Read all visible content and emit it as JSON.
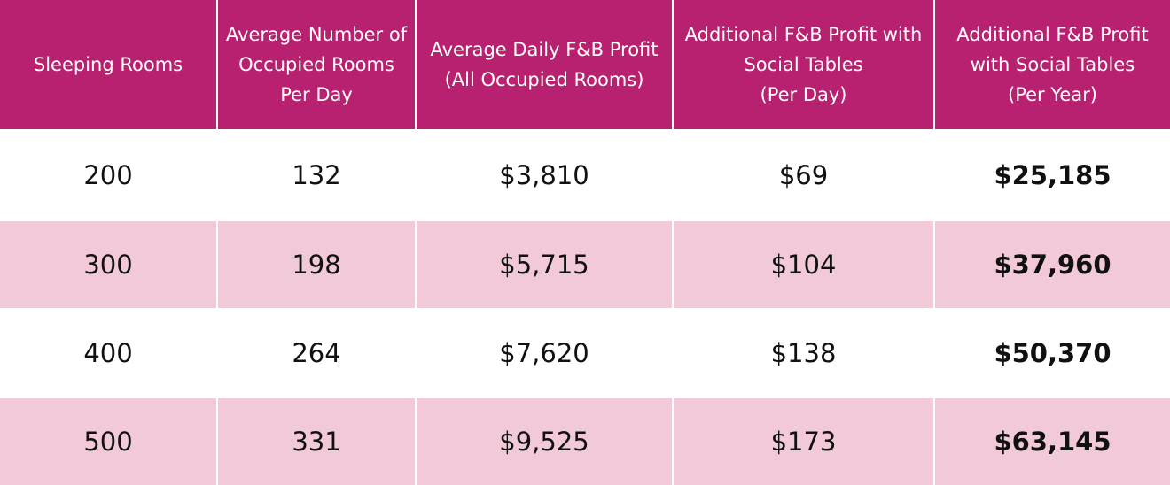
{
  "table": {
    "header": [
      "Sleeping Rooms",
      "Average Number of Occupied Rooms Per Day",
      "Average Daily F&B Profit\n(All Occupied Rooms)",
      "Additional F&B Profit with Social Tables\n(Per Day)",
      "Additional F&B Profit with Social Tables\n(Per Year)"
    ],
    "rows": [
      [
        "200",
        "132",
        "$3,810",
        "$69",
        "$25,185"
      ],
      [
        "300",
        "198",
        "$5,715",
        "$104",
        "$37,960"
      ],
      [
        "400",
        "264",
        "$7,620",
        "$138",
        "$50,370"
      ],
      [
        "500",
        "331",
        "$9,525",
        "$173",
        "$63,145"
      ]
    ]
  }
}
